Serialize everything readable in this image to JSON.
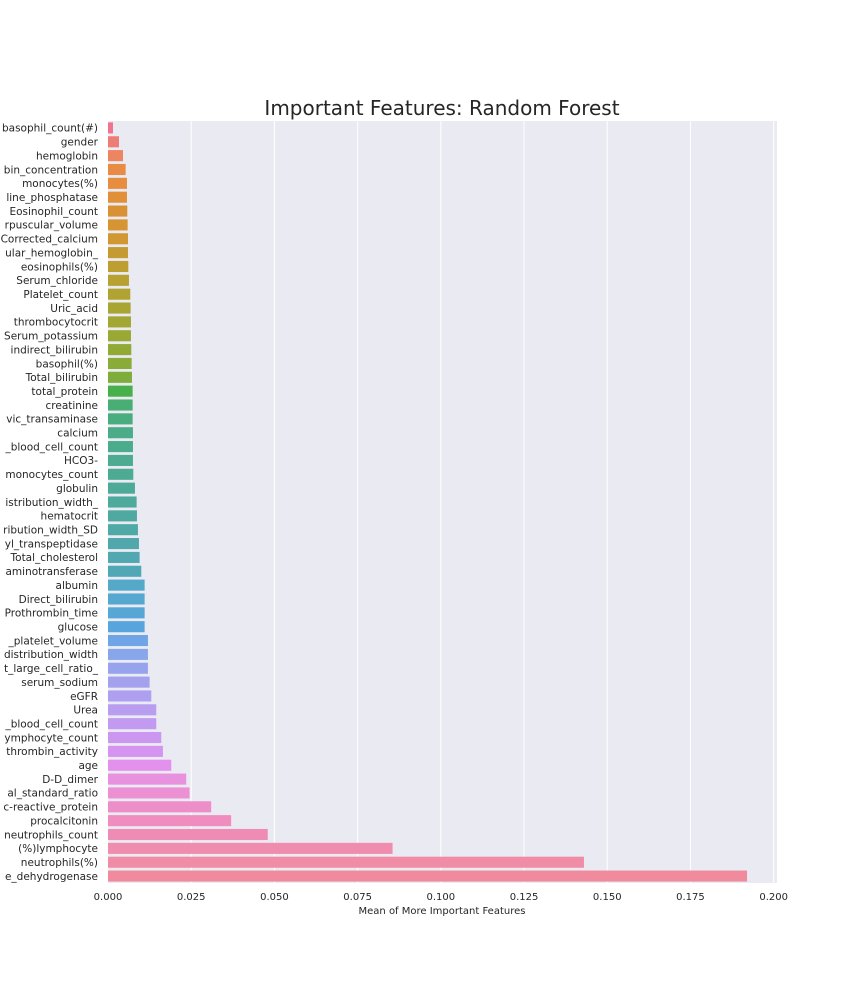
{
  "chart_data": {
    "type": "bar",
    "orientation": "horizontal",
    "title": "Important Features: Random Forest",
    "xlabel": "Mean of More Important Features",
    "ylabel": "",
    "xlim": [
      0,
      0.201
    ],
    "grid": true,
    "xticks": [
      "0.000",
      "0.025",
      "0.050",
      "0.075",
      "0.100",
      "0.125",
      "0.150",
      "0.175",
      "0.200"
    ],
    "categories": [
      "basophil_count(#)",
      "gender",
      "hemoglobin",
      "bin_concentration",
      "monocytes(%)",
      "line_phosphatase",
      "Eosinophil_count",
      "rpuscular_volume",
      "Corrected_calcium",
      "ular_hemoglobin_",
      "eosinophils(%)",
      "Serum_chloride",
      "Platelet_count",
      "Uric_acid",
      "thrombocytocrit",
      "Serum_potassium",
      "indirect_bilirubin",
      "basophil(%)",
      "Total_bilirubin",
      "total_protein",
      "creatinine",
      "vic_transaminase",
      "calcium",
      "_blood_cell_count",
      "HCO3-",
      "monocytes_count",
      "globulin",
      "istribution_width_",
      "hematocrit",
      "ribution_width_SD",
      "yl_transpeptidase",
      "Total_cholesterol",
      "aminotransferase",
      "albumin",
      "Direct_bilirubin",
      "Prothrombin_time",
      "glucose",
      "_platelet_volume",
      "distribution_width",
      "t_large_cell_ratio_",
      "serum_sodium",
      "eGFR",
      "Urea",
      "_blood_cell_count",
      "ymphocyte_count",
      "thrombin_activity",
      "age",
      "D-D_dimer",
      "al_standard_ratio",
      "c-reactive_protein",
      "procalcitonin",
      "neutrophils_count",
      "(%)lymphocyte",
      "neutrophils(%)",
      "e_dehydrogenase"
    ],
    "values": [
      0.0015,
      0.0033,
      0.0045,
      0.0053,
      0.0057,
      0.0057,
      0.0058,
      0.0059,
      0.006,
      0.006,
      0.0061,
      0.0063,
      0.0067,
      0.0068,
      0.0069,
      0.0069,
      0.007,
      0.0071,
      0.0072,
      0.0074,
      0.0074,
      0.0074,
      0.0075,
      0.0075,
      0.0075,
      0.0076,
      0.0081,
      0.0086,
      0.0087,
      0.009,
      0.0093,
      0.0095,
      0.01,
      0.011,
      0.011,
      0.011,
      0.011,
      0.012,
      0.012,
      0.012,
      0.0125,
      0.013,
      0.0145,
      0.0145,
      0.016,
      0.0165,
      0.019,
      0.0235,
      0.0245,
      0.031,
      0.037,
      0.048,
      0.0855,
      0.143,
      0.192
    ],
    "colors": [
      "#f0758c",
      "#ee7c76",
      "#ec8560",
      "#e88b45",
      "#e68d40",
      "#e28f3a",
      "#d99135",
      "#d69433",
      "#d09732",
      "#c59b31",
      "#bd9e31",
      "#b6a131",
      "#b0a331",
      "#a9a532",
      "#a2a733",
      "#9aa834",
      "#91aa34",
      "#88ac37",
      "#7fad3b",
      "#47b04a",
      "#49ae73",
      "#4aad80",
      "#4bac87",
      "#4bac8c",
      "#4cab90",
      "#4dab93",
      "#4daa98",
      "#4eaa9c",
      "#4fa9a1",
      "#4fa9a6",
      "#50a8ac",
      "#51a8b1",
      "#52a7b7",
      "#54a8c8",
      "#55a8cf",
      "#56a7d6",
      "#57a5dc",
      "#6fa4e6",
      "#88a6ea",
      "#97a3ec",
      "#a4a2ee",
      "#ae9ff0",
      "#b99df1",
      "#c29af1",
      "#cb97f1",
      "#d494f0",
      "#e391ec",
      "#e891df",
      "#ec8fd3",
      "#ee8ec8",
      "#ef8dbe",
      "#ef8cb6",
      "#f08cad",
      "#f08ca6",
      "#f08b9d"
    ]
  }
}
